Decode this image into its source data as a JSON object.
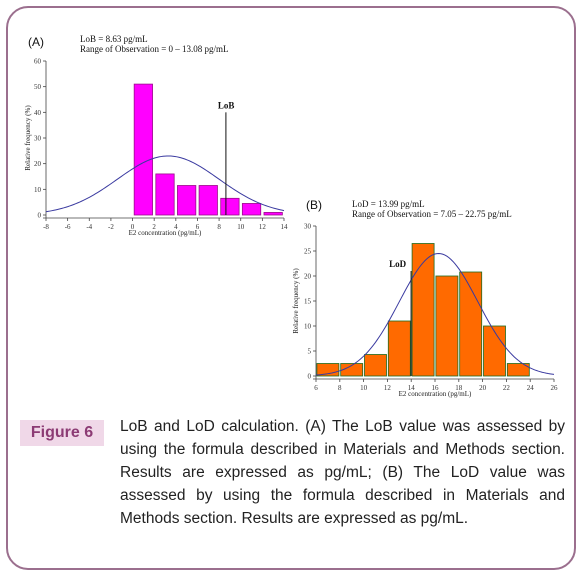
{
  "chart_data": [
    {
      "type": "bar",
      "panel_label": "(A)",
      "info_lines": [
        "LoB = 8.63 pg/mL",
        "Range of Observation = 0 – 13.08 pg/mL"
      ],
      "xlabel": "E2 concentration (pg/mL)",
      "ylabel": "Relative frequency (%)",
      "xlim": [
        -8,
        14
      ],
      "ylim": [
        0,
        60
      ],
      "xticks": [
        -8,
        -6,
        -4,
        -2,
        0,
        2,
        4,
        6,
        8,
        10,
        12,
        14
      ],
      "yticks": [
        0,
        10,
        20,
        30,
        40,
        50,
        60
      ],
      "bar_width": 1.7,
      "bars": [
        {
          "x": 1,
          "value": 51
        },
        {
          "x": 3,
          "value": 16
        },
        {
          "x": 5,
          "value": 11.5
        },
        {
          "x": 7,
          "value": 11.5
        },
        {
          "x": 9,
          "value": 6.5
        },
        {
          "x": 11,
          "value": 4.5
        },
        {
          "x": 13,
          "value": 1
        }
      ],
      "curve": {
        "mean": 3.3,
        "sd": 4.7,
        "peak": 23
      },
      "marker": {
        "label": "LoB",
        "x": 8.63,
        "top": 40
      },
      "colors": {
        "bar_fill": "#ff00ff",
        "bar_stroke": "#9a0f8a",
        "curve": "#3a3aa0",
        "marker": "#111111"
      }
    },
    {
      "type": "bar",
      "panel_label": "(B)",
      "info_lines": [
        "LoD = 13.99 pg/mL",
        "Range of Observation = 7.05 – 22.75 pg/mL"
      ],
      "xlabel": "E2 concentration (pg/mL)",
      "ylabel": "Relative frequency (%)",
      "xlim": [
        6,
        26
      ],
      "ylim": [
        0,
        30
      ],
      "xticks": [
        6,
        8,
        10,
        12,
        14,
        16,
        18,
        20,
        22,
        24,
        26
      ],
      "yticks": [
        0,
        5,
        10,
        15,
        20,
        25,
        30
      ],
      "bar_width": 1.85,
      "bars": [
        {
          "x": 7,
          "value": 2.5
        },
        {
          "x": 9,
          "value": 2.5
        },
        {
          "x": 11,
          "value": 4.3
        },
        {
          "x": 13,
          "value": 11
        },
        {
          "x": 15,
          "value": 26.5
        },
        {
          "x": 17,
          "value": 20
        },
        {
          "x": 19,
          "value": 20.8
        },
        {
          "x": 21,
          "value": 10
        },
        {
          "x": 23,
          "value": 2.5
        }
      ],
      "curve": {
        "mean": 16.3,
        "sd": 3.3,
        "peak": 24.5
      },
      "marker": {
        "label": "LoD",
        "x": 13.99,
        "top": 21
      },
      "colors": {
        "bar_fill": "#ff6a00",
        "bar_stroke": "#1f6b1f",
        "curve": "#3a3aa0",
        "marker": "#111111"
      }
    }
  ],
  "caption": {
    "tag": "Figure 6",
    "text": "LoB and LoD calculation. (A) The LoB value was assessed by using the formula described in Materials and Methods section. Results are expressed as pg/mL; (B) The LoD value was assessed by using the formula described in Materials and Methods section. Results are expressed as pg/mL."
  },
  "colors": {
    "frame": "#9b6f8e",
    "caption_tag_bg": "#f0d8e8",
    "caption_tag_text": "#8c3b74"
  }
}
